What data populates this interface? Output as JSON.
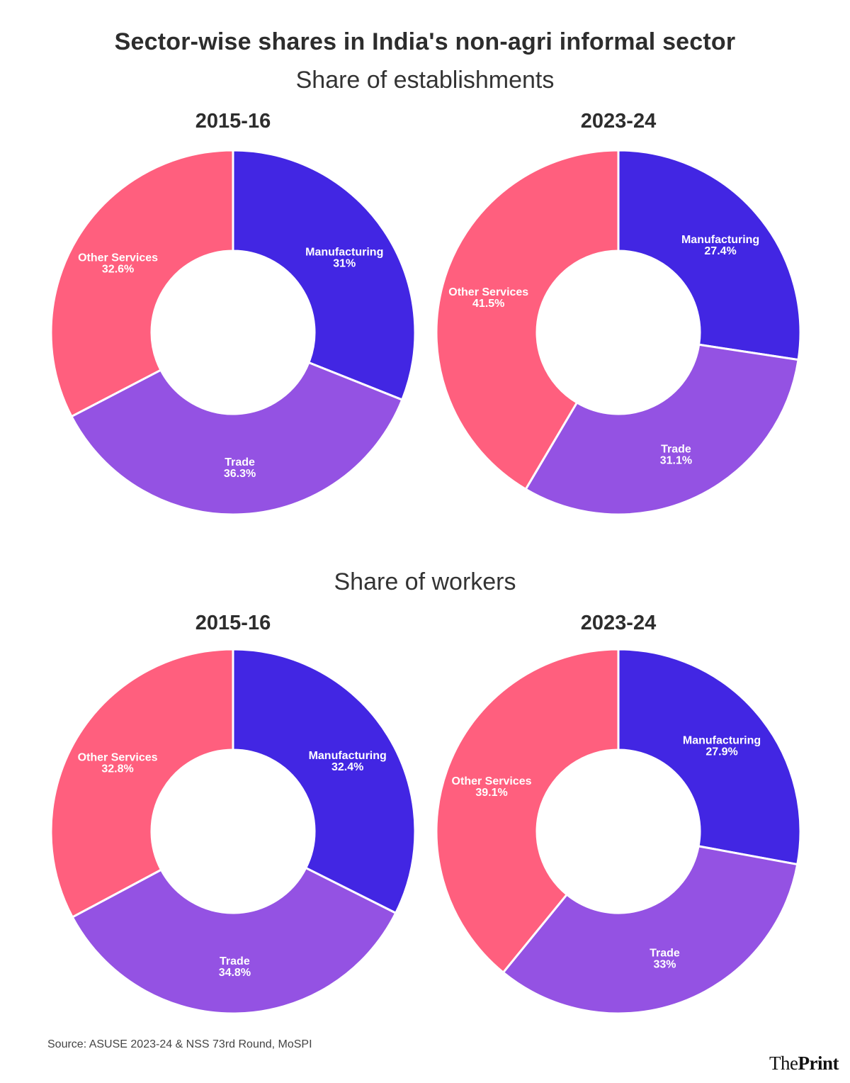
{
  "header": {
    "title": "Sector-wise shares in India's non-agri informal sector"
  },
  "colors": {
    "Manufacturing": "#4226E3",
    "Trade": "#9452E3",
    "Other Services": "#FF5F7E"
  },
  "chart_data": [
    {
      "type": "pie",
      "variant": "donut",
      "section": "Share of establishments",
      "title": "2015-16",
      "categories": [
        "Manufacturing",
        "Trade",
        "Other Services"
      ],
      "values": [
        31,
        36.3,
        32.6
      ],
      "value_labels": [
        "31%",
        "36.3%",
        "32.6%"
      ],
      "unit": "%"
    },
    {
      "type": "pie",
      "variant": "donut",
      "section": "Share of establishments",
      "title": "2023-24",
      "categories": [
        "Manufacturing",
        "Trade",
        "Other Services"
      ],
      "values": [
        27.4,
        31.1,
        41.5
      ],
      "value_labels": [
        "27.4%",
        "31.1%",
        "41.5%"
      ],
      "unit": "%"
    },
    {
      "type": "pie",
      "variant": "donut",
      "section": "Share of workers",
      "title": "2015-16",
      "categories": [
        "Manufacturing",
        "Trade",
        "Other Services"
      ],
      "values": [
        32.4,
        34.8,
        32.8
      ],
      "value_labels": [
        "32.4%",
        "34.8%",
        "32.8%"
      ],
      "unit": "%"
    },
    {
      "type": "pie",
      "variant": "donut",
      "section": "Share of workers",
      "title": "2023-24",
      "categories": [
        "Manufacturing",
        "Trade",
        "Other Services"
      ],
      "values": [
        27.9,
        33,
        39.1
      ],
      "value_labels": [
        "27.9%",
        "33%",
        "39.1%"
      ],
      "unit": "%"
    }
  ],
  "sections": [
    {
      "title": "Share of establishments"
    },
    {
      "title": "Share of workers"
    }
  ],
  "footer": {
    "source": "Source: ASUSE 2023-24 & NSS 73rd Round, MoSPI",
    "logo_the": "The",
    "logo_print": "Print"
  }
}
